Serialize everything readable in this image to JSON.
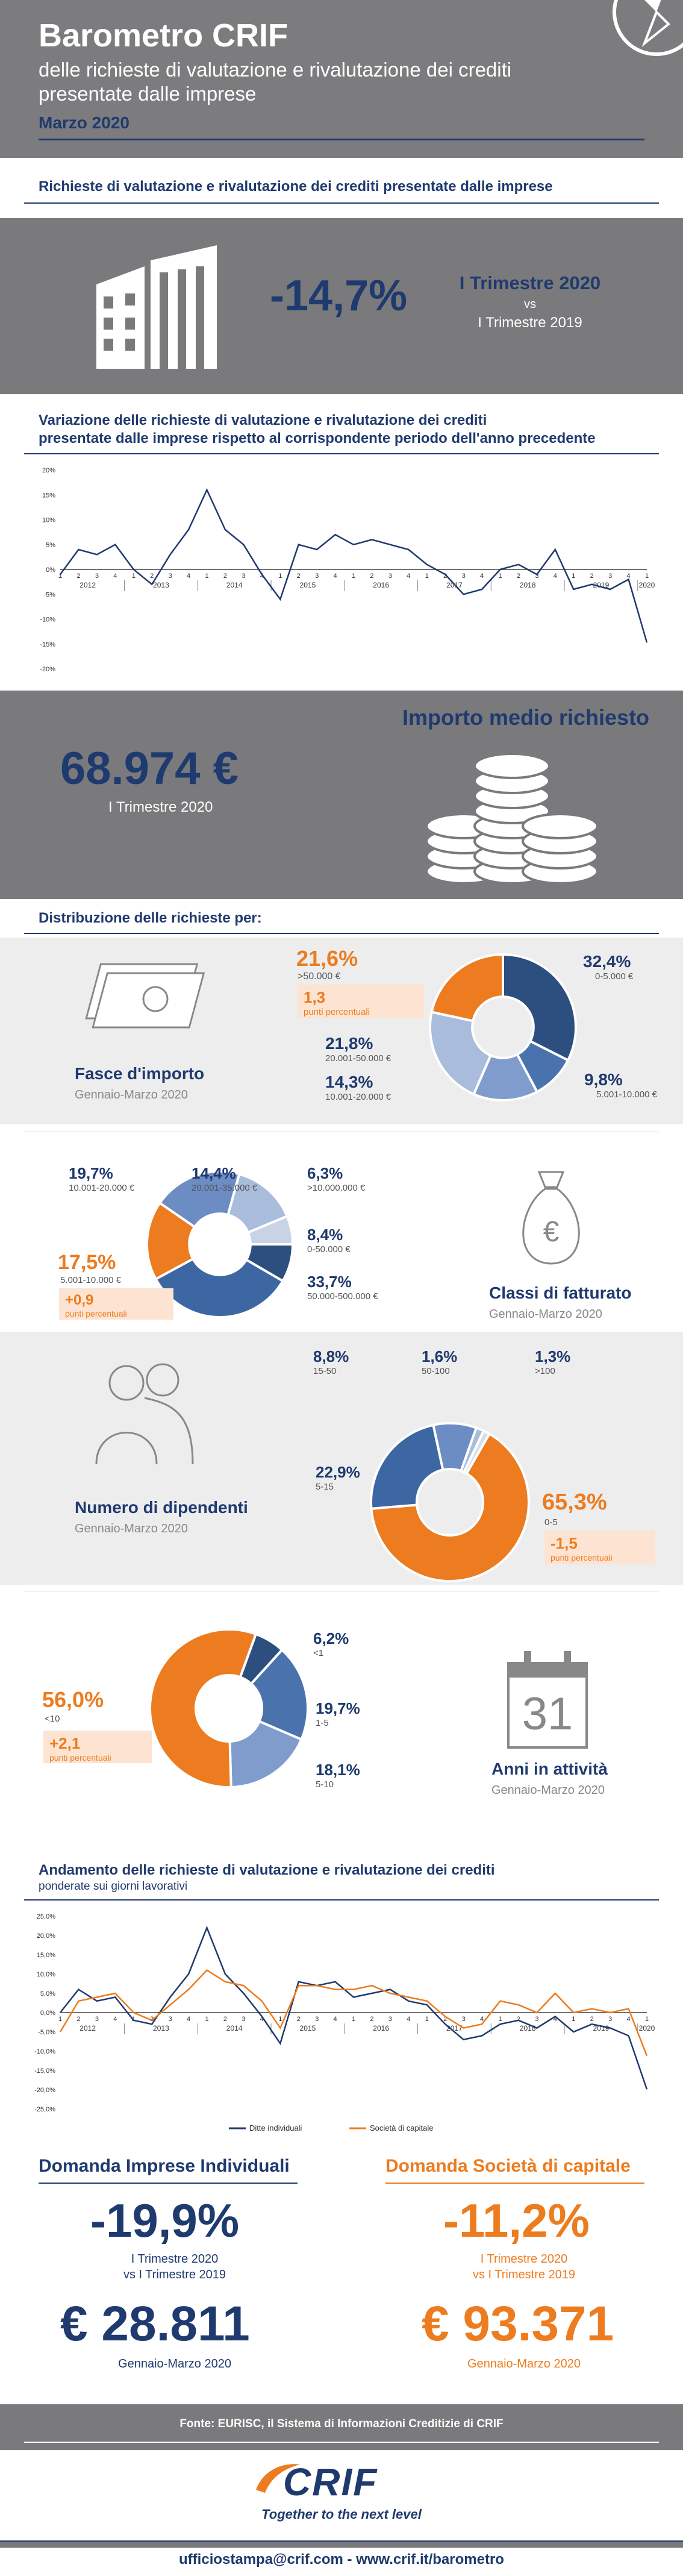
{
  "header": {
    "title": "Barometro CRIF",
    "subtitle": "delle richieste di valutazione e rivalutazione dei crediti presentate dalle imprese",
    "date": "Marzo 2020"
  },
  "section1": {
    "heading": "Richieste di valutazione e rivalutazione dei crediti presentate dalle imprese",
    "value": "-14,7%",
    "period_a": "I Trimestre 2020",
    "vs": "vs",
    "period_b": "I Trimestre 2019"
  },
  "chart1": {
    "heading_line1": "Variazione delle richieste di valutazione e rivalutazione dei crediti",
    "heading_line2": "presentate dalle imprese rispetto al corrispondente periodo dell'anno precedente"
  },
  "importo": {
    "heading": "Importo medio richiesto",
    "value": "68.974 €",
    "period": "I Trimestre 2020"
  },
  "distribuzione": {
    "heading": "Distribuzione delle richieste per:"
  },
  "fasce": {
    "title": "Fasce d'importo",
    "period": "Gennaio-Marzo 2020",
    "highlight_value": "21,6%",
    "highlight_label": ">50.000 €",
    "chip_value": "1,3",
    "chip_label": "punti percentuali",
    "items": [
      {
        "value": "32,4%",
        "label": "0-5.000 €"
      },
      {
        "value": "9,8%",
        "label": "5.001-10.000 €"
      },
      {
        "value": "14,3%",
        "label": "10.001-20.000 €"
      },
      {
        "value": "21,8%",
        "label": "20.001-50.000 €"
      }
    ]
  },
  "fatturato": {
    "title": "Classi di fatturato",
    "period": "Gennaio-Marzo 2020",
    "highlight_value": "17,5%",
    "highlight_label": "5.001-10.000 €",
    "chip_value": "+0,9",
    "chip_label": "punti percentuali",
    "items": [
      {
        "value": "19,7%",
        "label": "10.001-20.000 €"
      },
      {
        "value": "14,4%",
        "label": "20.001-35.000 €"
      },
      {
        "value": "6,3%",
        "label": ">10.000.000 €"
      },
      {
        "value": "8,4%",
        "label": "0-50.000 €"
      },
      {
        "value": "33,7%",
        "label": "50.000-500.000 €"
      }
    ]
  },
  "dipendenti": {
    "title": "Numero di dipendenti",
    "period": "Gennaio-Marzo 2020",
    "highlight_value": "65,3%",
    "highlight_label": "0-5",
    "chip_value": "-1,5",
    "chip_label": "punti percentuali",
    "items": [
      {
        "value": "8,8%",
        "label": "15-50"
      },
      {
        "value": "1,6%",
        "label": "50-100"
      },
      {
        "value": "1,3%",
        "label": ">100"
      },
      {
        "value": "22,9%",
        "label": "5-15"
      }
    ]
  },
  "anni": {
    "title": "Anni in attività",
    "period": "Gennaio-Marzo 2020",
    "icon_number": "31",
    "highlight_value": "56,0%",
    "highlight_label": "<10",
    "chip_value": "+2,1",
    "chip_label": "punti percentuali",
    "items": [
      {
        "value": "6,2%",
        "label": "<1"
      },
      {
        "value": "19,7%",
        "label": "1-5"
      },
      {
        "value": "18,1%",
        "label": "5-10"
      }
    ]
  },
  "chart2": {
    "heading_line1": "Andamento delle richieste di valutazione e rivalutazione dei crediti",
    "heading_line2": "ponderate sui giorni lavorativi"
  },
  "domanda": {
    "left_title": "Domanda Imprese Individuali",
    "left_value": "-19,9%",
    "left_period_a": "I Trimestre 2020",
    "left_period_b": "vs I Trimestre 2019",
    "left_amount": "€ 28.811",
    "left_amount_period": "Gennaio-Marzo 2020",
    "right_title": "Domanda Società di capitale",
    "right_value": "-11,2%",
    "right_period_a": "I Trimestre 2020",
    "right_period_b": "vs I Trimestre 2019",
    "right_amount": "€ 93.371",
    "right_amount_period": "Gennaio-Marzo 2020"
  },
  "footer": {
    "source": "Fonte: EURISC, il Sistema di Informazioni Creditizie di CRIF",
    "logo_text": "CRIF",
    "tagline": "Together to the next level",
    "contacts": "ufficiostampa@crif.com - www.crif.it/barometro"
  },
  "colors": {
    "navy": "#1f3a6e",
    "orange": "#ec7c1f",
    "grey": "#7c7c7e",
    "light": "#ededee"
  },
  "chart_data": [
    {
      "type": "line",
      "ylim": [
        -20,
        20
      ],
      "yticks": [
        "20%",
        "15%",
        "10%",
        "5%",
        "0%",
        "-5%",
        "-10%",
        "-15%",
        "-20%"
      ],
      "quarters": [
        "1",
        "2",
        "3",
        "4",
        "1",
        "2",
        "3",
        "4",
        "1",
        "2",
        "3",
        "4",
        "1",
        "2",
        "3",
        "4",
        "1",
        "2",
        "3",
        "4",
        "1",
        "2",
        "3",
        "4",
        "1",
        "2",
        "3",
        "4",
        "1",
        "2",
        "3",
        "4",
        "1"
      ],
      "years": [
        "2012",
        "2013",
        "2014",
        "2015",
        "2016",
        "2017",
        "2018",
        "2019",
        "2020"
      ],
      "values": [
        -1,
        4,
        3,
        5,
        0,
        -3,
        3,
        8,
        16,
        8,
        5,
        -1,
        -6,
        5,
        4,
        7,
        5,
        6,
        5,
        4,
        1,
        -1,
        -5,
        -4,
        0,
        1,
        -1,
        4,
        -4,
        -3,
        -4,
        -2,
        -14.7
      ]
    },
    {
      "type": "line",
      "ylim": [
        -25,
        25
      ],
      "yticks": [
        "25,0%",
        "20,0%",
        "15,0%",
        "10,0%",
        "5,0%",
        "0,0%",
        "-5,0%",
        "-10,0%",
        "-15,0%",
        "-20,0%",
        "-25,0%"
      ],
      "quarters": [
        "1",
        "2",
        "3",
        "4",
        "1",
        "2",
        "3",
        "4",
        "1",
        "2",
        "3",
        "4",
        "1",
        "2",
        "3",
        "4",
        "1",
        "2",
        "3",
        "4",
        "1",
        "2",
        "3",
        "4",
        "1",
        "2",
        "3",
        "4",
        "1",
        "2",
        "3",
        "4",
        "1"
      ],
      "years": [
        "2012",
        "2013",
        "2014",
        "2015",
        "2016",
        "2017",
        "2018",
        "2019",
        "2020"
      ],
      "series": [
        {
          "name": "Ditte individuali",
          "color": "#1f3a6e",
          "values": [
            0,
            6,
            3,
            4,
            -2,
            -3,
            4,
            10,
            22,
            10,
            5,
            -1,
            -8,
            8,
            7,
            8,
            4,
            5,
            6,
            3,
            2,
            -3,
            -7,
            -6,
            -3,
            -2,
            -4,
            -1,
            -5,
            -3,
            -4,
            -6,
            -19.9
          ]
        },
        {
          "name": "Società di capitale",
          "color": "#ec7c1f",
          "values": [
            -5,
            3,
            4,
            5,
            0,
            -2,
            2,
            6,
            11,
            8,
            7,
            3,
            -4,
            7,
            7,
            6,
            6,
            7,
            5,
            4,
            3,
            -1,
            -4,
            -3,
            3,
            2,
            0,
            5,
            0,
            1,
            0,
            1,
            -11.2
          ]
        }
      ]
    },
    {
      "type": "pie",
      "title": "Fasce d'importo",
      "values": [
        32.4,
        9.8,
        14.3,
        21.8,
        21.6
      ],
      "labels": [
        "0-5.000 €",
        "5.001-10.000 €",
        "10.001-20.000 €",
        "20.001-50.000 €",
        ">50.000 €"
      ],
      "colors": [
        "#2c4f80",
        "#4a73ad",
        "#7f9ccc",
        "#a9bcdc",
        "#ec7c1f"
      ]
    },
    {
      "type": "pie",
      "title": "Classi di fatturato",
      "values": [
        8.4,
        33.7,
        17.5,
        19.7,
        14.4,
        6.3
      ],
      "labels": [
        "0-50.000 €",
        "50.000-500.000 €",
        "5.001-10.000 €",
        "10.001-20.000 €",
        "20.001-35.000 €",
        ">10.000.000 €"
      ],
      "colors": [
        "#2c4f80",
        "#3d67a3",
        "#ec7c1f",
        "#6c8cc4",
        "#a9bcdc",
        "#c8d3e6"
      ]
    },
    {
      "type": "pie",
      "title": "Numero di dipendenti",
      "values": [
        65.3,
        22.9,
        8.8,
        1.6,
        1.3
      ],
      "labels": [
        "0-5",
        "5-15",
        "15-50",
        "50-100",
        ">100"
      ],
      "colors": [
        "#ec7c1f",
        "#3d67a3",
        "#6c8cc4",
        "#a9bcdc",
        "#d5deec"
      ]
    },
    {
      "type": "pie",
      "title": "Anni in attività",
      "values": [
        6.2,
        19.7,
        18.1,
        56.0
      ],
      "labels": [
        "<1",
        "1-5",
        "5-10",
        "<10"
      ],
      "colors": [
        "#2c4f80",
        "#4a73ad",
        "#7f9ccc",
        "#ec7c1f"
      ]
    }
  ]
}
